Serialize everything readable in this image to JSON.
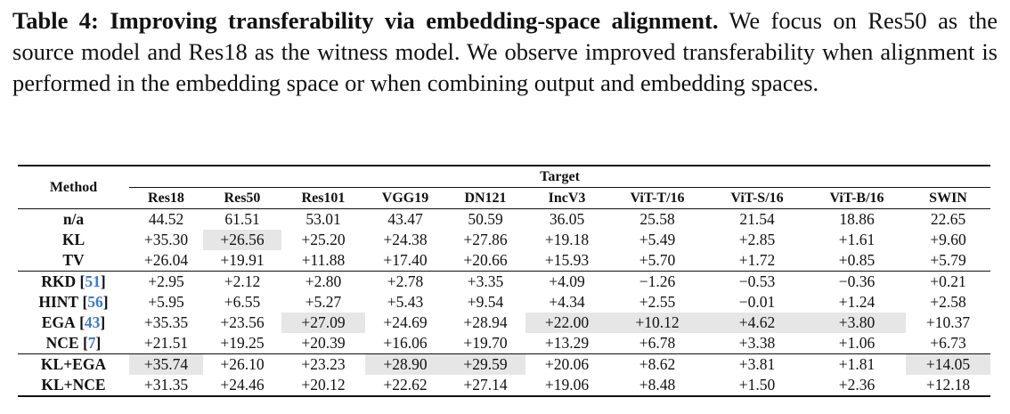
{
  "caption": {
    "title": "Table 4: Improving transferability via embedding-space alignment.",
    "text": "We focus on Res50 as the source model and Res18 as the witness model. We observe improved transferability when alignment is performed in the embedding space or when combining output and embedding spaces."
  },
  "table": {
    "method_header": "Method",
    "group_header": "Target",
    "columns": [
      "Res18",
      "Res50",
      "Res101",
      "VGG19",
      "DN121",
      "IncV3",
      "ViT-T/16",
      "ViT-S/16",
      "ViT-B/16",
      "SWIN"
    ],
    "groups": [
      [
        {
          "method": "n/a",
          "values": [
            "44.52",
            "61.51",
            "53.01",
            "43.47",
            "50.59",
            "36.05",
            "25.58",
            "21.54",
            "18.86",
            "22.65"
          ],
          "highlight": []
        },
        {
          "method": "KL",
          "values": [
            "+35.30",
            "+26.56",
            "+25.20",
            "+24.38",
            "+27.86",
            "+19.18",
            "+5.49",
            "+2.85",
            "+1.61",
            "+9.60"
          ],
          "highlight": [
            1
          ]
        },
        {
          "method": "TV",
          "values": [
            "+26.04",
            "+19.91",
            "+11.88",
            "+17.40",
            "+20.66",
            "+15.93",
            "+5.70",
            "+1.72",
            "+0.85",
            "+5.79"
          ],
          "highlight": []
        }
      ],
      [
        {
          "method": "RKD",
          "ref": "[51]",
          "values": [
            "+2.95",
            "+2.12",
            "+2.80",
            "+2.78",
            "+3.35",
            "+4.09",
            "−1.26",
            "−0.53",
            "−0.36",
            "+0.21"
          ],
          "highlight": []
        },
        {
          "method": "HINT",
          "ref": "[56]",
          "values": [
            "+5.95",
            "+6.55",
            "+5.27",
            "+5.43",
            "+9.54",
            "+4.34",
            "+2.55",
            "−0.01",
            "+1.24",
            "+2.58"
          ],
          "highlight": []
        },
        {
          "method": "EGA",
          "ref": "[43]",
          "values": [
            "+35.35",
            "+23.56",
            "+27.09",
            "+24.69",
            "+28.94",
            "+22.00",
            "+10.12",
            "+4.62",
            "+3.80",
            "+10.37"
          ],
          "highlight": [
            2,
            5,
            6,
            7,
            8
          ]
        },
        {
          "method": "NCE",
          "ref": "[7]",
          "values": [
            "+21.51",
            "+19.25",
            "+20.39",
            "+16.06",
            "+19.70",
            "+13.29",
            "+6.78",
            "+3.38",
            "+1.06",
            "+6.73"
          ],
          "highlight": []
        }
      ],
      [
        {
          "method": "KL+EGA",
          "values": [
            "+35.74",
            "+26.10",
            "+23.23",
            "+28.90",
            "+29.59",
            "+20.06",
            "+8.62",
            "+3.81",
            "+1.81",
            "+14.05"
          ],
          "highlight": [
            0,
            3,
            4,
            9
          ]
        },
        {
          "method": "KL+NCE",
          "values": [
            "+31.35",
            "+24.46",
            "+20.12",
            "+22.62",
            "+27.14",
            "+19.06",
            "+8.48",
            "+1.50",
            "+2.36",
            "+12.18"
          ],
          "highlight": []
        }
      ]
    ]
  }
}
